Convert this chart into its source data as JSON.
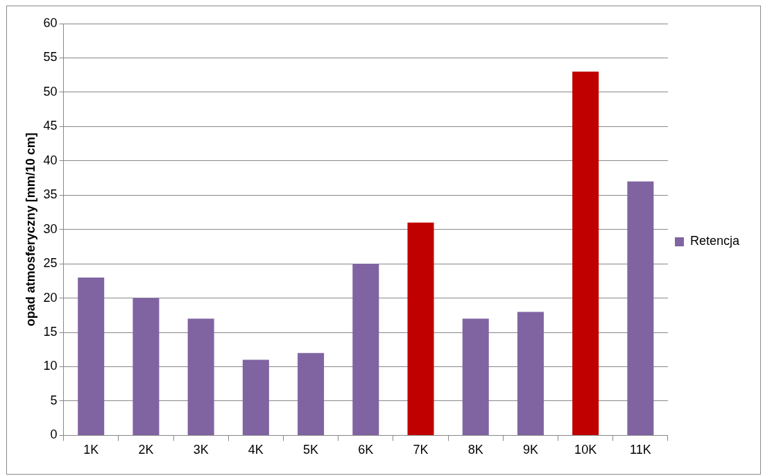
{
  "chart_data": {
    "type": "bar",
    "ylabel": "opad atmosferyczny [mm/10 cm]",
    "categories": [
      "1K",
      "2K",
      "3K",
      "4K",
      "5K",
      "6K",
      "7K",
      "8K",
      "9K",
      "10K",
      "11K"
    ],
    "series": [
      {
        "name": "Retencja",
        "color": "#8064a2",
        "colors": [
          "#8064a2",
          "#8064a2",
          "#8064a2",
          "#8064a2",
          "#8064a2",
          "#8064a2",
          "#c00000",
          "#8064a2",
          "#8064a2",
          "#c00000",
          "#8064a2"
        ],
        "values": [
          23,
          20,
          17,
          11,
          12,
          25,
          31,
          17,
          18,
          53,
          37
        ]
      }
    ],
    "ylim": [
      0,
      60
    ],
    "yticks": [
      0,
      5,
      10,
      15,
      20,
      25,
      30,
      35,
      40,
      45,
      50,
      55,
      60
    ],
    "grid": "y",
    "legend": "right"
  }
}
